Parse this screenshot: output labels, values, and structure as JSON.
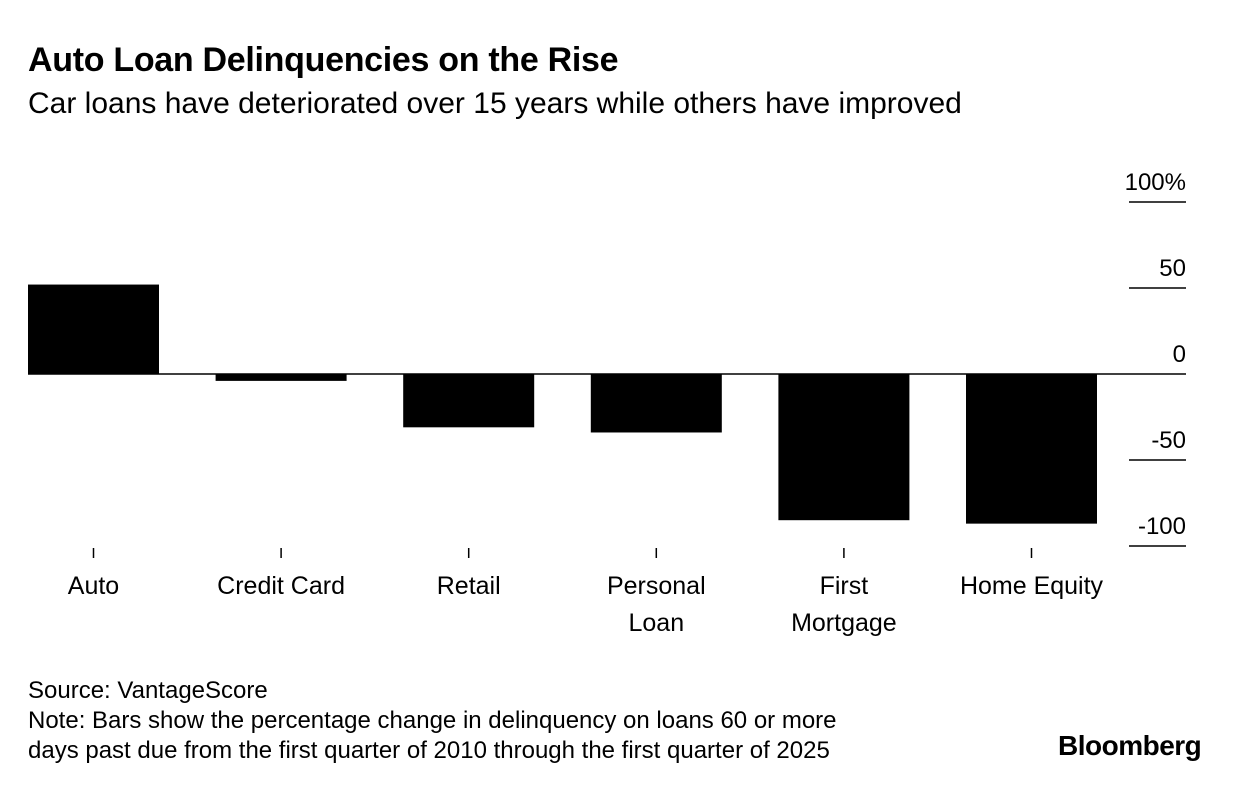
{
  "header": {
    "title": "Auto Loan Delinquencies on the Rise",
    "subtitle": "Car loans have deteriorated over 15 years while others have improved"
  },
  "chart_data": {
    "type": "bar",
    "title": "Auto Loan Delinquencies on the Rise",
    "subtitle": "Car loans have deteriorated over 15 years while others have improved",
    "categories": [
      "Auto",
      "Credit Card",
      "Retail",
      "Personal Loan",
      "First Mortgage",
      "Home Equity"
    ],
    "category_lines": [
      [
        "Auto"
      ],
      [
        "Credit Card"
      ],
      [
        "Retail"
      ],
      [
        "Personal",
        "Loan"
      ],
      [
        "First",
        "Mortgage"
      ],
      [
        "Home Equity"
      ]
    ],
    "values": [
      52,
      -4,
      -31,
      -34,
      -85,
      -87
    ],
    "ylim": [
      -100,
      100
    ],
    "yticks": [
      100,
      50,
      0,
      -50,
      -100
    ],
    "ytick_labels": [
      "100%",
      "50",
      "0",
      "-50",
      "-100"
    ],
    "xlabel": "",
    "ylabel": "",
    "grid": false,
    "bar_color": "#000000"
  },
  "footer": {
    "source": "Source: VantageScore",
    "note_line1": "Note: Bars show the percentage change in delinquency on loans 60 or more",
    "note_line2": "days past due from the first quarter of 2010 through the first quarter of 2025"
  },
  "brand": {
    "logo_text": "Bloomberg"
  }
}
